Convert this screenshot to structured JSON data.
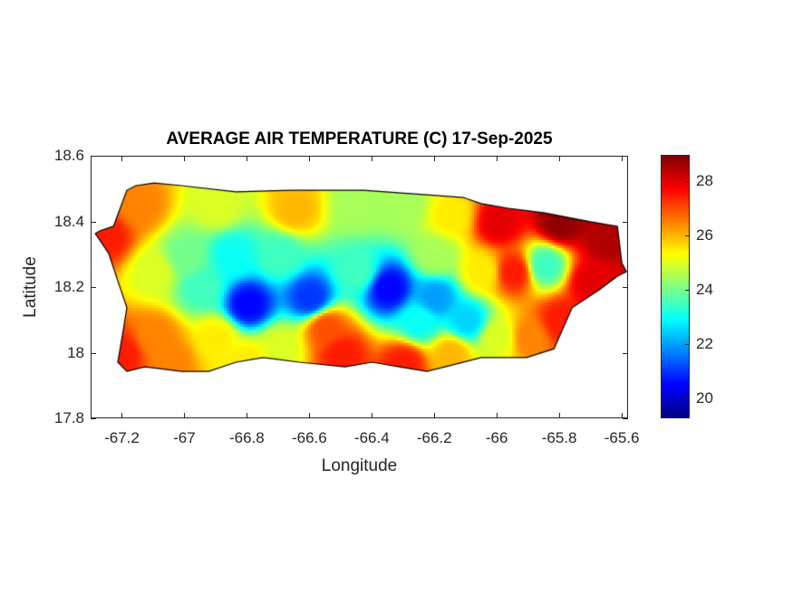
{
  "chart_data": {
    "type": "heatmap",
    "title": "AVERAGE AIR TEMPERATURE (C) 17-Sep-2025",
    "xlabel": "Longitude",
    "ylabel": "Latitude",
    "xlim": [
      -67.3,
      -65.58
    ],
    "ylim": [
      17.8,
      18.6
    ],
    "xticks": [
      -67.2,
      -67,
      -66.8,
      -66.6,
      -66.4,
      -66.2,
      -66,
      -65.8,
      -65.6
    ],
    "xtick_labels": [
      "-67.2",
      "-67",
      "-66.8",
      "-66.6",
      "-66.4",
      "-66.2",
      "-66",
      "-65.8",
      "-65.6"
    ],
    "yticks": [
      17.8,
      18,
      18.2,
      18.4,
      18.6
    ],
    "ytick_labels": [
      "17.8",
      "18",
      "18.2",
      "18.4",
      "18.6"
    ],
    "colormap": "jet",
    "clim": [
      19.27,
      28.97
    ],
    "colorbar_ticks": [
      20,
      22,
      24,
      26,
      28
    ],
    "colorbar_tick_labels": [
      "20",
      "22",
      "24",
      "26",
      "28"
    ],
    "outline_color": "#000000",
    "island_outline": [
      [
        -67.271,
        18.371
      ],
      [
        -67.227,
        18.385
      ],
      [
        -67.184,
        18.495
      ],
      [
        -67.155,
        18.509
      ],
      [
        -67.097,
        18.517
      ],
      [
        -67.009,
        18.509
      ],
      [
        -66.835,
        18.49
      ],
      [
        -66.66,
        18.495
      ],
      [
        -66.428,
        18.495
      ],
      [
        -66.224,
        18.481
      ],
      [
        -66.108,
        18.473
      ],
      [
        -66.05,
        18.454
      ],
      [
        -65.963,
        18.44
      ],
      [
        -65.847,
        18.426
      ],
      [
        -65.701,
        18.399
      ],
      [
        -65.614,
        18.385
      ],
      [
        -65.6,
        18.274
      ],
      [
        -65.585,
        18.247
      ],
      [
        -65.614,
        18.233
      ],
      [
        -65.672,
        18.192
      ],
      [
        -65.759,
        18.137
      ],
      [
        -65.817,
        18.012
      ],
      [
        -65.905,
        17.985
      ],
      [
        -66.05,
        17.985
      ],
      [
        -66.166,
        17.957
      ],
      [
        -66.224,
        17.943
      ],
      [
        -66.312,
        17.957
      ],
      [
        -66.399,
        17.971
      ],
      [
        -66.486,
        17.957
      ],
      [
        -66.631,
        17.971
      ],
      [
        -66.748,
        17.985
      ],
      [
        -66.835,
        17.971
      ],
      [
        -66.922,
        17.943
      ],
      [
        -67.009,
        17.943
      ],
      [
        -67.126,
        17.957
      ],
      [
        -67.184,
        17.943
      ],
      [
        -67.213,
        17.971
      ],
      [
        -67.198,
        18.054
      ],
      [
        -67.184,
        18.137
      ],
      [
        -67.213,
        18.219
      ],
      [
        -67.242,
        18.302
      ],
      [
        -67.285,
        18.363
      ]
    ],
    "samples": [
      [
        -67.25,
        18.36,
        27.5
      ],
      [
        -67.15,
        18.45,
        26.5
      ],
      [
        -67.2,
        18.0,
        27.5
      ],
      [
        -67.1,
        18.05,
        26.5
      ],
      [
        -66.9,
        18.45,
        25
      ],
      [
        -66.65,
        18.44,
        26
      ],
      [
        -66.45,
        18.45,
        24.5
      ],
      [
        -66.3,
        18.45,
        24.5
      ],
      [
        -66.15,
        18.42,
        25.5
      ],
      [
        -66.0,
        18.4,
        28
      ],
      [
        -65.8,
        18.4,
        28.8
      ],
      [
        -65.65,
        18.35,
        28.5
      ],
      [
        -65.7,
        18.22,
        28
      ],
      [
        -65.85,
        18.27,
        23.5
      ],
      [
        -65.95,
        18.25,
        27.5
      ],
      [
        -65.8,
        18.1,
        27.5
      ],
      [
        -66.85,
        18.3,
        23
      ],
      [
        -66.7,
        18.3,
        23.5
      ],
      [
        -66.8,
        18.15,
        20.5
      ],
      [
        -66.6,
        18.17,
        21
      ],
      [
        -66.35,
        18.2,
        20.5
      ],
      [
        -66.2,
        18.17,
        22
      ],
      [
        -66.45,
        18.25,
        23.5
      ],
      [
        -66.1,
        18.1,
        22.5
      ],
      [
        -66.95,
        18.2,
        23.5
      ],
      [
        -66.9,
        18.05,
        25.5
      ],
      [
        -66.7,
        18.02,
        25
      ],
      [
        -66.5,
        18.0,
        27.5
      ],
      [
        -66.3,
        17.97,
        27.5
      ],
      [
        -66.15,
        18.0,
        26
      ],
      [
        -66.0,
        18.05,
        25
      ],
      [
        -65.9,
        18.05,
        26.5
      ],
      [
        -66.55,
        18.08,
        27
      ],
      [
        -67.05,
        17.98,
        26.5
      ],
      [
        -66.8,
        17.98,
        25.5
      ],
      [
        -67.1,
        18.25,
        25
      ],
      [
        -67.0,
        18.3,
        24
      ],
      [
        -66.2,
        18.3,
        24.5
      ],
      [
        -66.05,
        18.25,
        25.5
      ],
      [
        -66.25,
        18.1,
        23
      ]
    ]
  }
}
